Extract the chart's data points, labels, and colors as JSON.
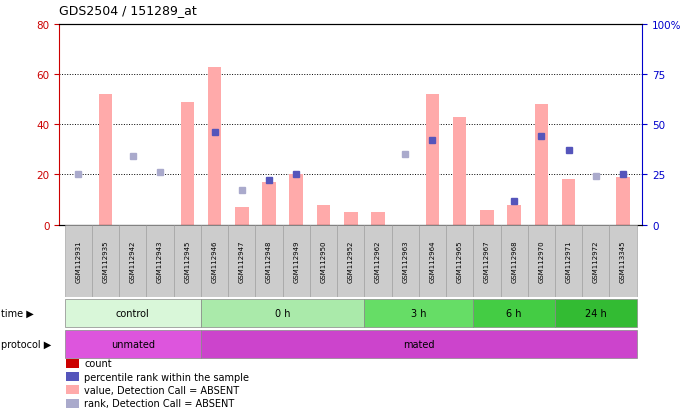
{
  "title": "GDS2504 / 151289_at",
  "samples": [
    "GSM112931",
    "GSM112935",
    "GSM112942",
    "GSM112943",
    "GSM112945",
    "GSM112946",
    "GSM112947",
    "GSM112948",
    "GSM112949",
    "GSM112950",
    "GSM112952",
    "GSM112962",
    "GSM112963",
    "GSM112964",
    "GSM112965",
    "GSM112967",
    "GSM112968",
    "GSM112970",
    "GSM112971",
    "GSM112972",
    "GSM113345"
  ],
  "bar_values": [
    0,
    52,
    0,
    0,
    49,
    63,
    7,
    17,
    20,
    8,
    5,
    5,
    0,
    52,
    43,
    6,
    8,
    48,
    18,
    0,
    19
  ],
  "bar_absent": [
    true,
    false,
    true,
    true,
    false,
    false,
    true,
    false,
    false,
    true,
    true,
    true,
    true,
    false,
    false,
    true,
    false,
    false,
    false,
    true,
    false
  ],
  "rank_values": [
    25,
    0,
    34,
    26,
    0,
    46,
    17,
    22,
    25,
    0,
    0,
    0,
    35,
    42,
    0,
    0,
    12,
    44,
    37,
    24,
    25
  ],
  "rank_absent": [
    true,
    false,
    true,
    true,
    false,
    false,
    true,
    false,
    false,
    true,
    true,
    true,
    true,
    false,
    false,
    true,
    false,
    false,
    false,
    true,
    false
  ],
  "time_groups": [
    {
      "label": "control",
      "start": 0,
      "end": 5,
      "color": "#d9f7d9"
    },
    {
      "label": "0 h",
      "start": 5,
      "end": 11,
      "color": "#aaeaaa"
    },
    {
      "label": "3 h",
      "start": 11,
      "end": 15,
      "color": "#66dd66"
    },
    {
      "label": "6 h",
      "start": 15,
      "end": 18,
      "color": "#44cc44"
    },
    {
      "label": "24 h",
      "start": 18,
      "end": 21,
      "color": "#33bb33"
    }
  ],
  "protocol_groups": [
    {
      "label": "unmated",
      "start": 0,
      "end": 5,
      "color": "#dd55dd"
    },
    {
      "label": "mated",
      "start": 5,
      "end": 21,
      "color": "#cc44cc"
    }
  ],
  "ylim_left": [
    0,
    80
  ],
  "ylim_right": [
    0,
    100
  ],
  "yticks_left": [
    0,
    20,
    40,
    60,
    80
  ],
  "yticks_right": [
    0,
    25,
    50,
    75,
    100
  ],
  "left_color": "#cc0000",
  "right_color": "#0000cc",
  "bar_present_color": "#ffaaaa",
  "bar_absent_color": "#ffaaaa",
  "rank_present_color": "#5555bb",
  "rank_absent_color": "#aaaacc",
  "bar_width": 0.5,
  "background_color": "#ffffff",
  "legend_items": [
    {
      "label": "count",
      "color": "#cc0000"
    },
    {
      "label": "percentile rank within the sample",
      "color": "#5555bb"
    },
    {
      "label": "value, Detection Call = ABSENT",
      "color": "#ffaaaa"
    },
    {
      "label": "rank, Detection Call = ABSENT",
      "color": "#aaaacc"
    }
  ]
}
